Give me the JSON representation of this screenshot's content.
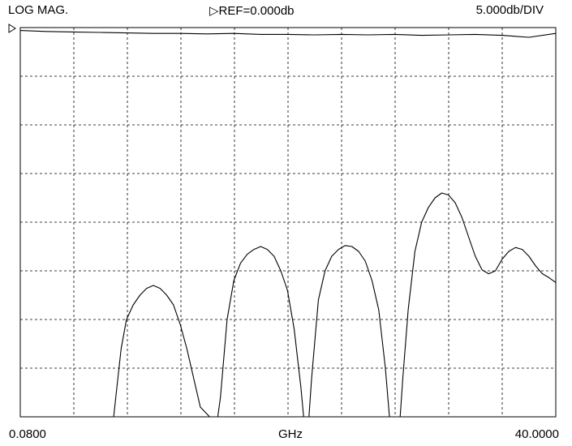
{
  "header": {
    "mode": "LOG MAG.",
    "reference": "▷REF=0.000db",
    "scale": "5.000db/DIV"
  },
  "footer": {
    "start": "0.0800",
    "unit": "GHz",
    "stop": "40.0000"
  },
  "chart_data": {
    "type": "line",
    "title": "",
    "xlabel": "GHz",
    "ylabel": "",
    "xlim": [
      0.08,
      40.0
    ],
    "ylim": [
      -40,
      0
    ],
    "grid": true,
    "grid_divisions": {
      "x": 10,
      "y": 8
    },
    "db_per_div": 5.0,
    "reference_db": 0.0,
    "series": [
      {
        "role": "upper trace",
        "x": [
          0.08,
          2,
          4,
          6,
          8,
          10,
          12,
          14,
          16,
          18,
          20,
          22,
          24,
          26,
          28,
          30,
          32,
          34,
          36,
          38,
          40
        ],
        "y": [
          -0.3,
          -0.4,
          -0.45,
          -0.5,
          -0.55,
          -0.6,
          -0.6,
          -0.65,
          -0.6,
          -0.7,
          -0.7,
          -0.75,
          -0.7,
          -0.75,
          -0.7,
          -0.8,
          -0.75,
          -0.7,
          -0.8,
          -1.0,
          -0.6
        ]
      },
      {
        "role": "lower trace",
        "segments": [
          {
            "x": [
              7.04,
              7.2,
              7.6,
              8.0,
              8.5,
              9.0,
              9.5,
              10.0,
              10.5,
              11.0,
              11.5,
              12.0,
              12.5,
              13.0,
              13.5,
              14.2
            ],
            "y": [
              -40,
              -38,
              -33,
              -30,
              -28.5,
              -27.5,
              -26.8,
              -26.5,
              -26.8,
              -27.5,
              -28.5,
              -30.5,
              -33,
              -36,
              -39,
              -40
            ]
          },
          {
            "x": [
              14.8,
              15.0,
              15.5,
              16.0,
              16.5,
              17.0,
              17.5,
              18.0,
              18.5,
              19.0,
              19.5,
              20.0,
              20.5,
              21.0,
              21.2
            ],
            "y": [
              -40,
              -38,
              -30,
              -26,
              -24.2,
              -23.3,
              -22.8,
              -22.5,
              -22.8,
              -23.5,
              -25,
              -27,
              -31,
              -37,
              -40
            ]
          },
          {
            "x": [
              21.6,
              21.8,
              22.3,
              22.8,
              23.3,
              23.8,
              24.3,
              24.8,
              25.3,
              25.8,
              26.3,
              26.8,
              27.3,
              27.6
            ],
            "y": [
              -40,
              -36,
              -28,
              -25,
              -23.5,
              -22.8,
              -22.4,
              -22.5,
              -23,
              -24,
              -26,
              -29,
              -35,
              -40
            ]
          },
          {
            "x": [
              28.4,
              28.6,
              29.0,
              29.5,
              30.0,
              30.5,
              31.0,
              31.5,
              32.0,
              32.5,
              33.0,
              33.5,
              34.0,
              34.5,
              35.0,
              35.5,
              36.0,
              36.5,
              37.0,
              37.5,
              38.0,
              38.5,
              39.0,
              39.5,
              40.0
            ],
            "y": [
              -40,
              -36,
              -29,
              -23,
              -20,
              -18.5,
              -17.5,
              -17.0,
              -17.2,
              -18.0,
              -19.5,
              -21.5,
              -23.5,
              -24.9,
              -25.3,
              -25.0,
              -23.8,
              -23.0,
              -22.6,
              -22.8,
              -23.5,
              -24.5,
              -25.3,
              -25.7,
              -26.2
            ]
          }
        ]
      }
    ]
  }
}
